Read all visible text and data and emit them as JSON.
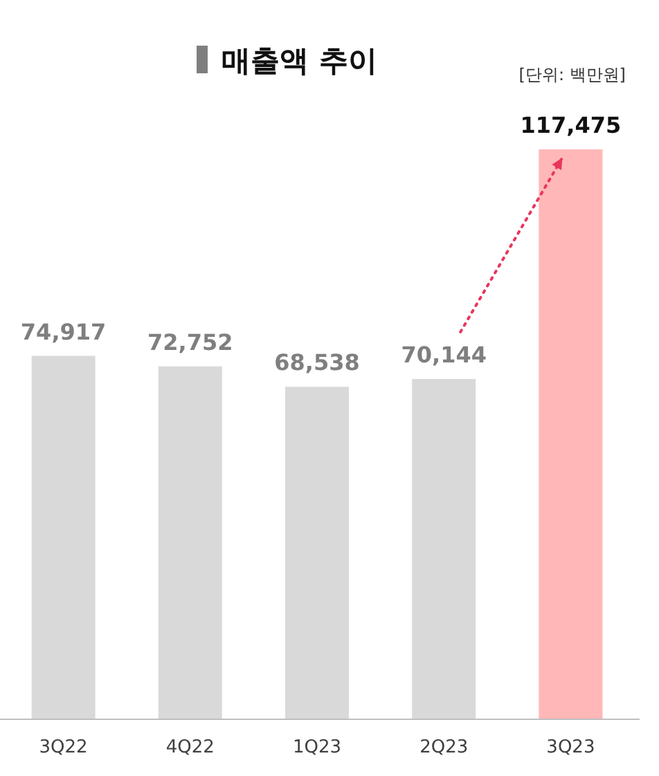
{
  "chart_data": {
    "type": "bar",
    "title": "매출액 추이",
    "annotations": [
      "[단위: 백만원]"
    ],
    "categories": [
      "3Q22",
      "4Q22",
      "1Q23",
      "2Q23",
      "3Q23"
    ],
    "values": [
      74917,
      72752,
      68538,
      70144,
      117475
    ],
    "colors": [
      "#d9d9d9",
      "#d9d9d9",
      "#d9d9d9",
      "#d9d9d9",
      "#ffb7b7"
    ],
    "value_labels": [
      "74,917",
      "72,752",
      "68,538",
      "70,144",
      "117,475"
    ]
  }
}
